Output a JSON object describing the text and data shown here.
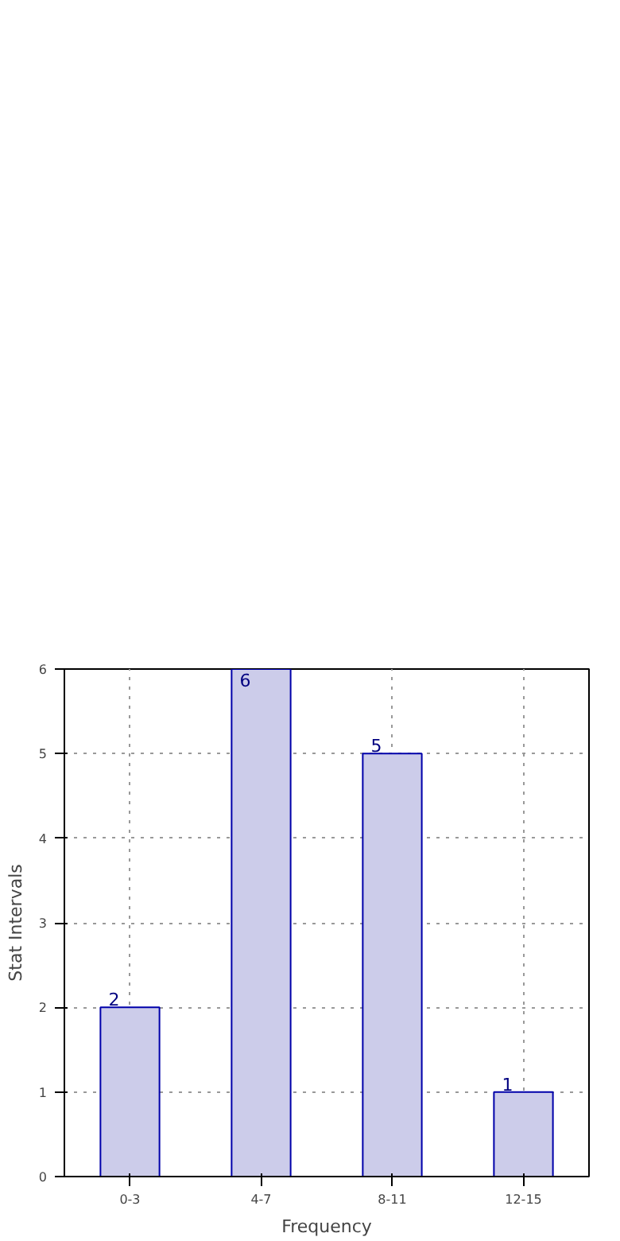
{
  "chart_data": {
    "type": "bar",
    "categories": [
      "0-3",
      "4-7",
      "8-11",
      "12-15"
    ],
    "values": [
      2,
      6,
      5,
      1
    ],
    "color": "#ccccea",
    "xlabel": "Frequency",
    "ylabel": "Stat Intervals",
    "ylim": [
      0,
      6
    ],
    "yticks": [
      0,
      1,
      2,
      3,
      4,
      5,
      6
    ],
    "grid": true,
    "data_labels": true,
    "line_style": "dotted"
  }
}
